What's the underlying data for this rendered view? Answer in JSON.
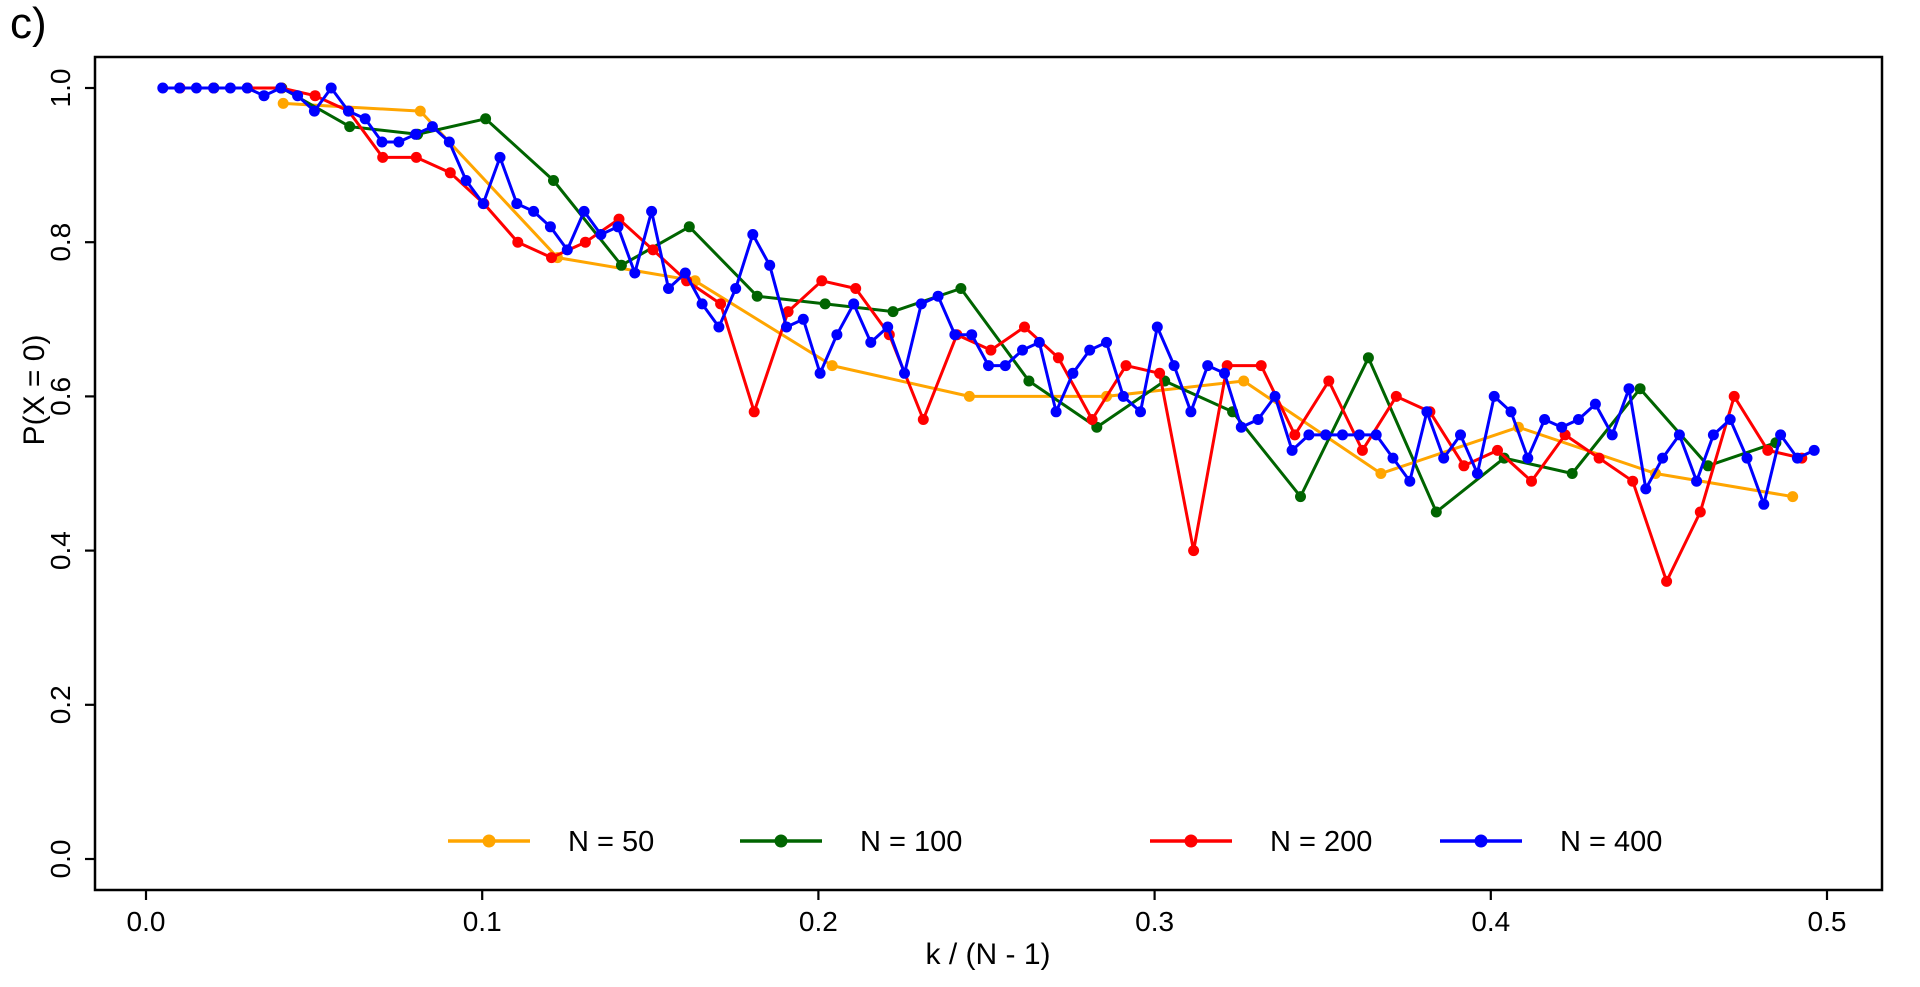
{
  "panel": {
    "label": "c)"
  },
  "chart_data": {
    "type": "line",
    "panel_label": "c)",
    "title": "",
    "xlabel": "k / (N - 1)",
    "ylabel": "P(X = 0)",
    "xlim": [
      0,
      0.5
    ],
    "ylim": [
      0,
      1
    ],
    "grid": false,
    "legend_position": "bottom-inside-horizontal",
    "xticks": {
      "values": [
        0,
        0.1,
        0.2,
        0.3,
        0.4,
        0.5
      ],
      "labels": [
        "0.0",
        "0.1",
        "0.2",
        "0.3",
        "0.4",
        "0.5"
      ]
    },
    "yticks": {
      "values": [
        0,
        0.2,
        0.4,
        0.6,
        0.8,
        1.0
      ],
      "labels": [
        "0.0",
        "0.2",
        "0.4",
        "0.6",
        "0.8",
        "1.0"
      ]
    },
    "x_definition": "x = k / (N - 1) for even k starting at 2",
    "series": [
      {
        "label": "N = 50",
        "color": "#FFA500",
        "N": 50,
        "x": [
          0.0408,
          0.0816,
          0.1224,
          0.1633,
          0.2041,
          0.2449,
          0.2857,
          0.3265,
          0.3673,
          0.4082,
          0.449,
          0.4898
        ],
        "y": [
          0.98,
          0.97,
          0.78,
          0.75,
          0.64,
          0.6,
          0.6,
          0.62,
          0.5,
          0.56,
          0.5,
          0.47
        ]
      },
      {
        "label": "N = 100",
        "color": "#006400",
        "N": 100,
        "x": [
          0.0202,
          0.0404,
          0.0606,
          0.0808,
          0.101,
          0.1212,
          0.1414,
          0.1616,
          0.1818,
          0.202,
          0.2222,
          0.2424,
          0.2626,
          0.2828,
          0.303,
          0.3232,
          0.3434,
          0.3636,
          0.3838,
          0.404,
          0.4242,
          0.4444,
          0.4646,
          0.4848
        ],
        "y": [
          1.0,
          1.0,
          0.95,
          0.94,
          0.96,
          0.88,
          0.77,
          0.82,
          0.73,
          0.72,
          0.71,
          0.74,
          0.62,
          0.56,
          0.62,
          0.58,
          0.47,
          0.65,
          0.45,
          0.52,
          0.5,
          0.61,
          0.51,
          0.54
        ]
      },
      {
        "label": "N = 200",
        "color": "#FF0000",
        "N": 200,
        "x": [
          0.0101,
          0.0201,
          0.0302,
          0.0402,
          0.0503,
          0.0603,
          0.0704,
          0.0804,
          0.0905,
          0.1005,
          0.1106,
          0.1206,
          0.1307,
          0.1407,
          0.1508,
          0.1608,
          0.1709,
          0.1809,
          0.191,
          0.201,
          0.2111,
          0.2211,
          0.2312,
          0.2412,
          0.2513,
          0.2613,
          0.2714,
          0.2814,
          0.2915,
          0.3015,
          0.3116,
          0.3216,
          0.3317,
          0.3417,
          0.3518,
          0.3618,
          0.3719,
          0.3819,
          0.392,
          0.402,
          0.4121,
          0.4221,
          0.4322,
          0.4422,
          0.4523,
          0.4623,
          0.4724,
          0.4824,
          0.4925
        ],
        "y": [
          1.0,
          1.0,
          1.0,
          1.0,
          0.99,
          0.97,
          0.91,
          0.91,
          0.89,
          0.85,
          0.8,
          0.78,
          0.8,
          0.83,
          0.79,
          0.75,
          0.72,
          0.58,
          0.71,
          0.75,
          0.74,
          0.68,
          0.57,
          0.68,
          0.66,
          0.69,
          0.65,
          0.57,
          0.64,
          0.63,
          0.4,
          0.64,
          0.64,
          0.55,
          0.62,
          0.53,
          0.6,
          0.58,
          0.51,
          0.53,
          0.49,
          0.55,
          0.52,
          0.49,
          0.36,
          0.45,
          0.6,
          0.53,
          0.52
        ]
      },
      {
        "label": "N = 400",
        "color": "#0000FF",
        "N": 400,
        "x": [
          0.005,
          0.01,
          0.015,
          0.0201,
          0.0251,
          0.0301,
          0.0351,
          0.0401,
          0.0451,
          0.0501,
          0.0551,
          0.0602,
          0.0652,
          0.0702,
          0.0752,
          0.0802,
          0.0852,
          0.0902,
          0.0952,
          0.1003,
          0.1053,
          0.1103,
          0.1153,
          0.1203,
          0.1253,
          0.1303,
          0.1353,
          0.1404,
          0.1454,
          0.1504,
          0.1554,
          0.1604,
          0.1654,
          0.1704,
          0.1754,
          0.1805,
          0.1855,
          0.1905,
          0.1955,
          0.2005,
          0.2055,
          0.2105,
          0.2156,
          0.2206,
          0.2256,
          0.2306,
          0.2356,
          0.2406,
          0.2456,
          0.2506,
          0.2556,
          0.2607,
          0.2657,
          0.2707,
          0.2757,
          0.2807,
          0.2857,
          0.2907,
          0.2958,
          0.3008,
          0.3058,
          0.3108,
          0.3158,
          0.3208,
          0.3258,
          0.3308,
          0.3358,
          0.3409,
          0.3459,
          0.3509,
          0.3559,
          0.3609,
          0.3659,
          0.3709,
          0.3759,
          0.381,
          0.386,
          0.391,
          0.396,
          0.401,
          0.406,
          0.411,
          0.416,
          0.4211,
          0.4261,
          0.4311,
          0.4361,
          0.4411,
          0.4461,
          0.4511,
          0.4561,
          0.4612,
          0.4662,
          0.4712,
          0.4762,
          0.4812,
          0.4862,
          0.4912,
          0.4962
        ],
        "y": [
          1.0,
          1.0,
          1.0,
          1.0,
          1.0,
          1.0,
          0.99,
          1.0,
          0.99,
          0.97,
          1.0,
          0.97,
          0.96,
          0.93,
          0.93,
          0.94,
          0.95,
          0.93,
          0.88,
          0.85,
          0.91,
          0.85,
          0.84,
          0.82,
          0.79,
          0.84,
          0.81,
          0.82,
          0.76,
          0.84,
          0.74,
          0.76,
          0.72,
          0.69,
          0.74,
          0.81,
          0.77,
          0.69,
          0.7,
          0.63,
          0.68,
          0.72,
          0.67,
          0.69,
          0.63,
          0.72,
          0.73,
          0.68,
          0.68,
          0.64,
          0.64,
          0.66,
          0.67,
          0.58,
          0.63,
          0.66,
          0.67,
          0.6,
          0.58,
          0.69,
          0.64,
          0.58,
          0.64,
          0.63,
          0.56,
          0.57,
          0.6,
          0.53,
          0.55,
          0.55,
          0.55,
          0.55,
          0.55,
          0.52,
          0.49,
          0.58,
          0.52,
          0.55,
          0.5,
          0.6,
          0.58,
          0.52,
          0.57,
          0.56,
          0.57,
          0.59,
          0.55,
          0.61,
          0.48,
          0.52,
          0.55,
          0.49,
          0.55,
          0.57,
          0.52,
          0.46,
          0.55,
          0.52,
          0.53
        ]
      }
    ]
  }
}
